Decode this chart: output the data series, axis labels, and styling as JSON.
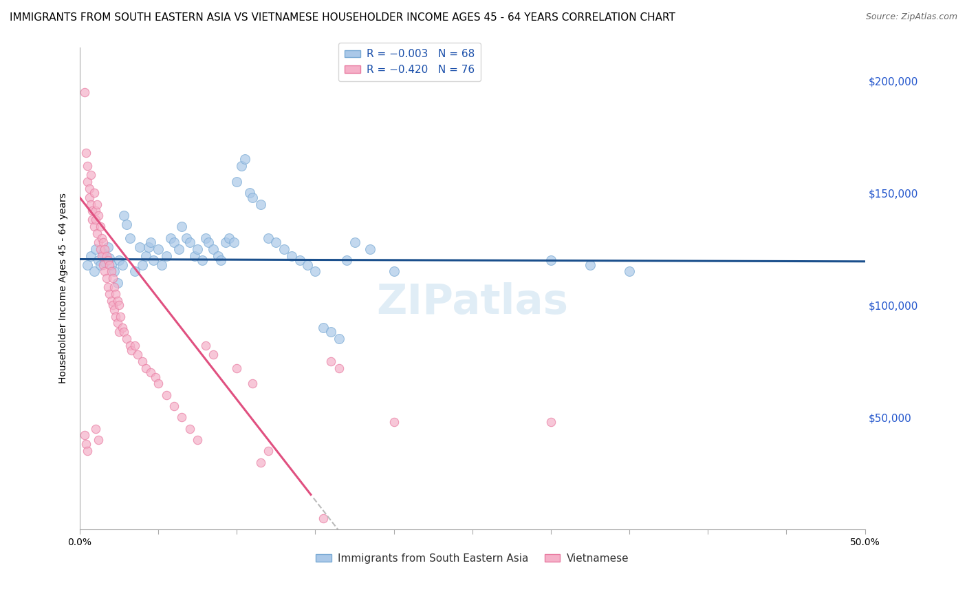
{
  "title": "IMMIGRANTS FROM SOUTH EASTERN ASIA VS VIETNAMESE HOUSEHOLDER INCOME AGES 45 - 64 YEARS CORRELATION CHART",
  "source": "Source: ZipAtlas.com",
  "ylabel": "Householder Income Ages 45 - 64 years",
  "yticks": [
    0,
    50000,
    100000,
    150000,
    200000
  ],
  "ytick_labels": [
    "",
    "$50,000",
    "$100,000",
    "$150,000",
    "$200,000"
  ],
  "xlim": [
    0.0,
    0.5
  ],
  "ylim": [
    0,
    215000
  ],
  "legend_label1": "Immigrants from South Eastern Asia",
  "legend_label2": "Vietnamese",
  "blue_scatter": [
    [
      0.005,
      118000
    ],
    [
      0.007,
      122000
    ],
    [
      0.009,
      115000
    ],
    [
      0.01,
      125000
    ],
    [
      0.012,
      120000
    ],
    [
      0.013,
      118000
    ],
    [
      0.015,
      123000
    ],
    [
      0.016,
      119000
    ],
    [
      0.018,
      126000
    ],
    [
      0.019,
      121000
    ],
    [
      0.02,
      118000
    ],
    [
      0.022,
      115000
    ],
    [
      0.024,
      110000
    ],
    [
      0.025,
      120000
    ],
    [
      0.027,
      118000
    ],
    [
      0.028,
      140000
    ],
    [
      0.03,
      136000
    ],
    [
      0.032,
      130000
    ],
    [
      0.035,
      115000
    ],
    [
      0.038,
      126000
    ],
    [
      0.04,
      118000
    ],
    [
      0.042,
      122000
    ],
    [
      0.044,
      126000
    ],
    [
      0.045,
      128000
    ],
    [
      0.047,
      120000
    ],
    [
      0.05,
      125000
    ],
    [
      0.052,
      118000
    ],
    [
      0.055,
      122000
    ],
    [
      0.058,
      130000
    ],
    [
      0.06,
      128000
    ],
    [
      0.063,
      125000
    ],
    [
      0.065,
      135000
    ],
    [
      0.068,
      130000
    ],
    [
      0.07,
      128000
    ],
    [
      0.073,
      122000
    ],
    [
      0.075,
      125000
    ],
    [
      0.078,
      120000
    ],
    [
      0.08,
      130000
    ],
    [
      0.082,
      128000
    ],
    [
      0.085,
      125000
    ],
    [
      0.088,
      122000
    ],
    [
      0.09,
      120000
    ],
    [
      0.093,
      128000
    ],
    [
      0.095,
      130000
    ],
    [
      0.098,
      128000
    ],
    [
      0.1,
      155000
    ],
    [
      0.103,
      162000
    ],
    [
      0.105,
      165000
    ],
    [
      0.108,
      150000
    ],
    [
      0.11,
      148000
    ],
    [
      0.115,
      145000
    ],
    [
      0.12,
      130000
    ],
    [
      0.125,
      128000
    ],
    [
      0.13,
      125000
    ],
    [
      0.135,
      122000
    ],
    [
      0.14,
      120000
    ],
    [
      0.145,
      118000
    ],
    [
      0.15,
      115000
    ],
    [
      0.155,
      90000
    ],
    [
      0.16,
      88000
    ],
    [
      0.165,
      85000
    ],
    [
      0.17,
      120000
    ],
    [
      0.175,
      128000
    ],
    [
      0.185,
      125000
    ],
    [
      0.2,
      115000
    ],
    [
      0.3,
      120000
    ],
    [
      0.325,
      118000
    ],
    [
      0.35,
      115000
    ]
  ],
  "pink_scatter": [
    [
      0.003,
      195000
    ],
    [
      0.004,
      168000
    ],
    [
      0.005,
      162000
    ],
    [
      0.005,
      155000
    ],
    [
      0.006,
      152000
    ],
    [
      0.006,
      148000
    ],
    [
      0.007,
      158000
    ],
    [
      0.007,
      145000
    ],
    [
      0.008,
      142000
    ],
    [
      0.008,
      138000
    ],
    [
      0.009,
      150000
    ],
    [
      0.009,
      135000
    ],
    [
      0.01,
      142000
    ],
    [
      0.01,
      138000
    ],
    [
      0.011,
      145000
    ],
    [
      0.011,
      132000
    ],
    [
      0.012,
      140000
    ],
    [
      0.012,
      128000
    ],
    [
      0.013,
      135000
    ],
    [
      0.013,
      125000
    ],
    [
      0.014,
      130000
    ],
    [
      0.014,
      122000
    ],
    [
      0.015,
      128000
    ],
    [
      0.015,
      118000
    ],
    [
      0.016,
      125000
    ],
    [
      0.016,
      115000
    ],
    [
      0.017,
      122000
    ],
    [
      0.017,
      112000
    ],
    [
      0.018,
      120000
    ],
    [
      0.018,
      108000
    ],
    [
      0.019,
      118000
    ],
    [
      0.019,
      105000
    ],
    [
      0.02,
      115000
    ],
    [
      0.02,
      102000
    ],
    [
      0.021,
      112000
    ],
    [
      0.021,
      100000
    ],
    [
      0.022,
      108000
    ],
    [
      0.022,
      98000
    ],
    [
      0.023,
      105000
    ],
    [
      0.023,
      95000
    ],
    [
      0.024,
      102000
    ],
    [
      0.024,
      92000
    ],
    [
      0.025,
      100000
    ],
    [
      0.025,
      88000
    ],
    [
      0.026,
      95000
    ],
    [
      0.027,
      90000
    ],
    [
      0.028,
      88000
    ],
    [
      0.03,
      85000
    ],
    [
      0.032,
      82000
    ],
    [
      0.033,
      80000
    ],
    [
      0.035,
      82000
    ],
    [
      0.037,
      78000
    ],
    [
      0.04,
      75000
    ],
    [
      0.042,
      72000
    ],
    [
      0.045,
      70000
    ],
    [
      0.048,
      68000
    ],
    [
      0.05,
      65000
    ],
    [
      0.055,
      60000
    ],
    [
      0.06,
      55000
    ],
    [
      0.065,
      50000
    ],
    [
      0.07,
      45000
    ],
    [
      0.075,
      40000
    ],
    [
      0.003,
      42000
    ],
    [
      0.004,
      38000
    ],
    [
      0.005,
      35000
    ],
    [
      0.01,
      45000
    ],
    [
      0.012,
      40000
    ],
    [
      0.08,
      82000
    ],
    [
      0.085,
      78000
    ],
    [
      0.1,
      72000
    ],
    [
      0.11,
      65000
    ],
    [
      0.115,
      30000
    ],
    [
      0.12,
      35000
    ],
    [
      0.155,
      5000
    ],
    [
      0.16,
      75000
    ],
    [
      0.165,
      72000
    ],
    [
      0.2,
      48000
    ],
    [
      0.3,
      48000
    ]
  ],
  "blue_line_intercept": 120000,
  "blue_line_slope_per_unit": -300,
  "pink_line_intercept": 148000,
  "pink_line_slope_per_unit": -900000,
  "blue_line_color": "#1a4f8c",
  "pink_line_color": "#e05080",
  "scatter_alpha": 0.7,
  "scatter_size_blue": 100,
  "scatter_size_pink": 80,
  "background_color": "#ffffff",
  "grid_color": "#dddddd",
  "watermark": "ZIPatlas",
  "watermark_color": "#c8dff0",
  "title_fontsize": 11,
  "source_fontsize": 9,
  "ytick_color": "#2255cc",
  "xtick_only_ends": true
}
